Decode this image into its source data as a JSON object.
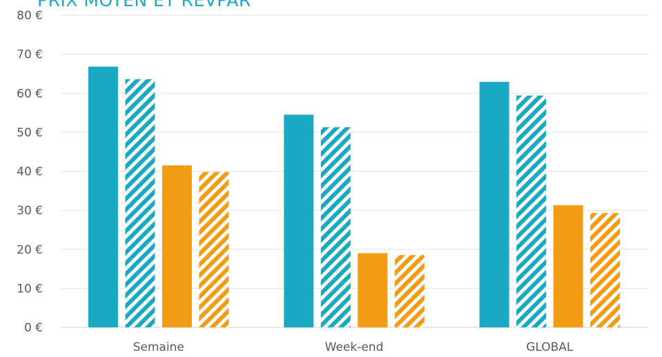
{
  "chart_data": {
    "type": "bar",
    "title": "PRIX MOYEN ET REVPAR",
    "xlabel": "",
    "ylabel": "",
    "ylim": [
      0,
      80
    ],
    "ytick_step": 10,
    "y_unit": "€",
    "grid": true,
    "legend": "none",
    "categories": [
      "Semaine",
      "Week-end",
      "GLOBAL"
    ],
    "series": [
      {
        "values": [
          66.8,
          54.5,
          62.9
        ],
        "color": "#1aa9c3",
        "pattern": "solid"
      },
      {
        "values": [
          63.6,
          51.3,
          59.4
        ],
        "color": "#1aa9c3",
        "pattern": "hatched"
      },
      {
        "values": [
          41.5,
          19.0,
          31.3
        ],
        "color": "#f29b14",
        "pattern": "solid"
      },
      {
        "values": [
          39.8,
          18.5,
          29.3
        ],
        "color": "#f29b14",
        "pattern": "hatched"
      }
    ]
  }
}
